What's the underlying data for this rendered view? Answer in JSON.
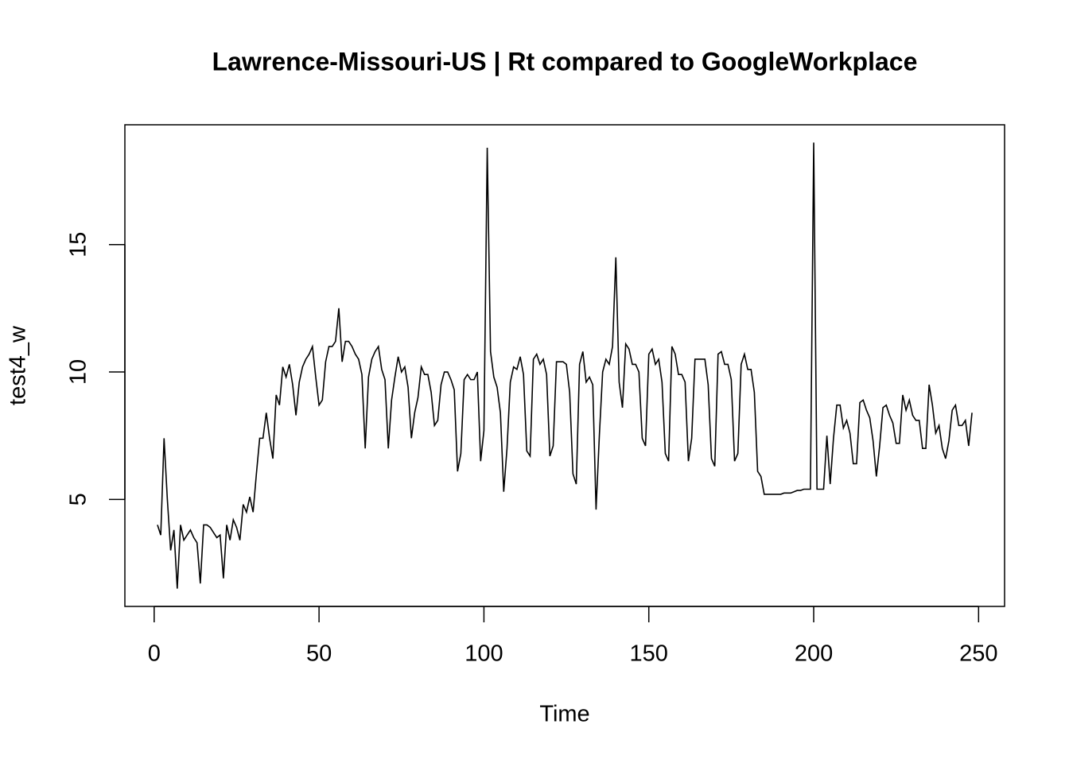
{
  "chart_data": {
    "type": "line",
    "title": "Lawrence-Missouri-US | Rt compared to GoogleWorkplace",
    "x_label": "Time",
    "y_label": "test4_w",
    "color": "#000000",
    "xlim": [
      -8.88,
      257.88
    ],
    "ylim": [
      0.8,
      19.7
    ],
    "xticks": [
      0,
      50,
      100,
      150,
      200,
      250
    ],
    "yticks": [
      5,
      10,
      15
    ],
    "x": [
      1,
      2,
      3,
      4,
      5,
      6,
      7,
      8,
      9,
      10,
      11,
      12,
      13,
      14,
      15,
      16,
      17,
      18,
      19,
      20,
      21,
      22,
      23,
      24,
      25,
      26,
      27,
      28,
      29,
      30,
      31,
      32,
      33,
      34,
      35,
      36,
      37,
      38,
      39,
      40,
      41,
      42,
      43,
      44,
      45,
      46,
      47,
      48,
      49,
      50,
      51,
      52,
      53,
      54,
      55,
      56,
      57,
      58,
      59,
      60,
      61,
      62,
      63,
      64,
      65,
      66,
      67,
      68,
      69,
      70,
      71,
      72,
      73,
      74,
      75,
      76,
      77,
      78,
      79,
      80,
      81,
      82,
      83,
      84,
      85,
      86,
      87,
      88,
      89,
      90,
      91,
      92,
      93,
      94,
      95,
      96,
      97,
      98,
      99,
      100,
      101,
      102,
      103,
      104,
      105,
      106,
      107,
      108,
      109,
      110,
      111,
      112,
      113,
      114,
      115,
      116,
      117,
      118,
      119,
      120,
      121,
      122,
      123,
      124,
      125,
      126,
      127,
      128,
      129,
      130,
      131,
      132,
      133,
      134,
      135,
      136,
      137,
      138,
      139,
      140,
      141,
      142,
      143,
      144,
      145,
      146,
      147,
      148,
      149,
      150,
      151,
      152,
      153,
      154,
      155,
      156,
      157,
      158,
      159,
      160,
      161,
      162,
      163,
      164,
      165,
      166,
      167,
      168,
      169,
      170,
      171,
      172,
      173,
      174,
      175,
      176,
      177,
      178,
      179,
      180,
      181,
      182,
      183,
      184,
      185,
      186,
      187,
      188,
      189,
      190,
      191,
      192,
      193,
      194,
      195,
      196,
      197,
      198,
      199,
      200,
      201,
      202,
      203,
      204,
      205,
      206,
      207,
      208,
      209,
      210,
      211,
      212,
      213,
      214,
      215,
      216,
      217,
      218,
      219,
      220,
      221,
      222,
      223,
      224,
      225,
      226,
      227,
      228,
      229,
      230,
      231,
      232,
      233,
      234,
      235,
      236,
      237,
      238,
      239,
      240,
      241,
      242,
      243,
      244,
      245,
      246,
      247,
      248
    ],
    "values": [
      4.0,
      3.6,
      7.4,
      5.0,
      3.0,
      3.8,
      1.5,
      4.0,
      3.4,
      3.6,
      3.8,
      3.5,
      3.3,
      1.7,
      4.0,
      4.0,
      3.9,
      3.7,
      3.5,
      3.6,
      1.9,
      4.0,
      3.4,
      4.2,
      3.9,
      3.4,
      4.8,
      4.5,
      5.1,
      4.5,
      6.0,
      7.4,
      7.4,
      8.4,
      7.4,
      6.6,
      9.1,
      8.7,
      10.2,
      9.8,
      10.3,
      9.5,
      8.3,
      9.6,
      10.2,
      10.5,
      10.7,
      11.0,
      9.8,
      8.7,
      8.9,
      10.4,
      11.0,
      11.0,
      11.2,
      12.5,
      10.4,
      11.2,
      11.2,
      11.0,
      10.7,
      10.5,
      9.9,
      7.0,
      9.8,
      10.5,
      10.8,
      11.0,
      10.1,
      9.7,
      7.0,
      8.9,
      9.8,
      10.6,
      10.0,
      10.2,
      9.4,
      7.4,
      8.4,
      9.0,
      10.2,
      9.9,
      9.9,
      9.2,
      7.9,
      8.1,
      9.5,
      10.0,
      10.0,
      9.7,
      9.3,
      6.1,
      6.8,
      9.7,
      9.9,
      9.7,
      9.7,
      10.0,
      6.5,
      7.7,
      18.8,
      10.8,
      9.8,
      9.4,
      8.4,
      5.3,
      7.0,
      9.6,
      10.2,
      10.1,
      10.6,
      9.9,
      6.9,
      6.7,
      10.5,
      10.7,
      10.3,
      10.5,
      9.9,
      6.7,
      7.1,
      10.4,
      10.4,
      10.4,
      10.3,
      9.2,
      6.0,
      5.6,
      10.3,
      10.8,
      9.6,
      9.8,
      9.5,
      4.6,
      7.5,
      10.0,
      10.5,
      10.3,
      11.0,
      14.5,
      9.6,
      8.6,
      11.1,
      10.9,
      10.3,
      10.3,
      10.0,
      7.4,
      7.1,
      10.7,
      10.9,
      10.3,
      10.5,
      9.6,
      6.8,
      6.5,
      11.0,
      10.7,
      9.9,
      9.9,
      9.6,
      6.5,
      7.4,
      10.5,
      10.5,
      10.5,
      10.5,
      9.5,
      6.6,
      6.3,
      10.7,
      10.8,
      10.3,
      10.3,
      9.7,
      6.5,
      6.8,
      10.3,
      10.7,
      10.1,
      10.1,
      9.2,
      6.1,
      5.9,
      5.2,
      5.2,
      5.2,
      5.2,
      5.2,
      5.2,
      5.25,
      5.25,
      5.25,
      5.3,
      5.35,
      5.35,
      5.4,
      5.4,
      5.4,
      19.0,
      5.4,
      5.4,
      5.4,
      7.5,
      5.6,
      7.4,
      8.7,
      8.7,
      7.8,
      8.1,
      7.6,
      6.4,
      6.4,
      8.8,
      8.9,
      8.5,
      8.2,
      7.3,
      5.9,
      7.1,
      8.6,
      8.7,
      8.3,
      8.0,
      7.2,
      7.2,
      9.1,
      8.5,
      8.9,
      8.3,
      8.1,
      8.1,
      7.0,
      7.0,
      9.5,
      8.7,
      7.6,
      7.9,
      7.0,
      6.6,
      7.3,
      8.5,
      8.7,
      7.9,
      7.9,
      8.1,
      7.1,
      8.4
    ]
  }
}
